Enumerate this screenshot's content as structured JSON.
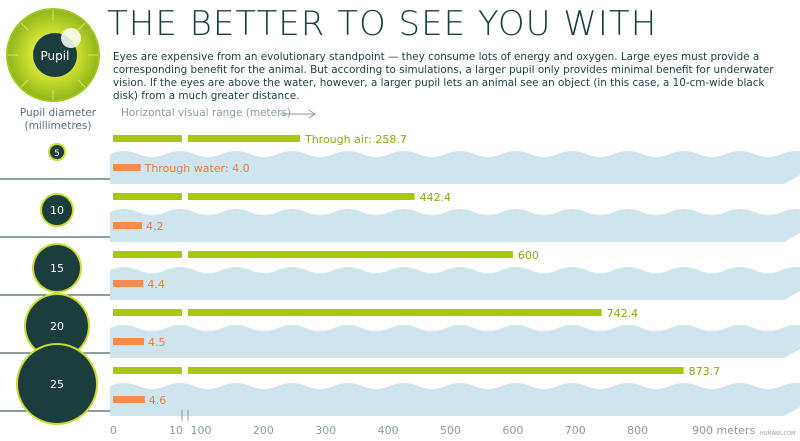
{
  "header": {
    "title": "THE BETTER TO SEE YOU WITH",
    "intro": "Eyes are expensive from an evolutionary standpoint — they consume lots of energy and oxygen. Large eyes must provide a corresponding benefit for the animal. But according to simulations, a larger pupil only provides minimal benefit for underwater vision. If the eyes are above the water, however, a larger pupil lets an animal see an object (in this case, a 10-cm-wide black disk) from a much greater distance.",
    "logo_label": "Pupil"
  },
  "axes": {
    "pupil_axis_title": "Pupil diameter (millimetres)",
    "range_axis_title": "Horizontal visual range (meters)"
  },
  "colors": {
    "air": "#a9c712",
    "water": "#f58a4c",
    "wave": "#cfe5ed",
    "pupil_fill": "#1c3d3d",
    "pupil_ring": "#c9dd2e",
    "axis_text": "#8a9aa3",
    "value_air": "#8aa80f",
    "value_water": "#f07a3a"
  },
  "chart_data": {
    "type": "bar",
    "title": "THE BETTER TO SEE YOU WITH",
    "xlabel": "Horizontal visual range (meters)",
    "ylabel": "Pupil diameter (millimetres)",
    "x_scale": "broken: 0-10 then 100-900",
    "categories": [
      5,
      10,
      15,
      20,
      25
    ],
    "category_labels": [
      "5",
      "10",
      "15",
      "20",
      "25"
    ],
    "series": [
      {
        "name": "Through air",
        "values": [
          258.7,
          442.4,
          600,
          742.4,
          873.7
        ]
      },
      {
        "name": "Through water",
        "values": [
          4.0,
          4.2,
          4.4,
          4.5,
          4.6
        ]
      }
    ],
    "value_labels": {
      "air": [
        "Through air: 258.7",
        "442.4",
        "600",
        "742.4",
        "873.7"
      ],
      "water": [
        "Through water: 4.0",
        "4.2",
        "4.4",
        "4.5",
        "4.6"
      ]
    },
    "ticks": [
      {
        "label": "0",
        "value": 0
      },
      {
        "label": "10",
        "value": 10
      },
      {
        "label": "100",
        "value": 100
      },
      {
        "label": "200",
        "value": 200
      },
      {
        "label": "300",
        "value": 300
      },
      {
        "label": "400",
        "value": 400
      },
      {
        "label": "500",
        "value": 500
      },
      {
        "label": "600",
        "value": 600
      },
      {
        "label": "700",
        "value": 700
      },
      {
        "label": "800",
        "value": 800
      },
      {
        "label": "900 meters",
        "value": 900
      }
    ],
    "xlim": [
      0,
      900
    ],
    "grid": false,
    "legend": "none"
  },
  "credit": "HUMANS.COM"
}
